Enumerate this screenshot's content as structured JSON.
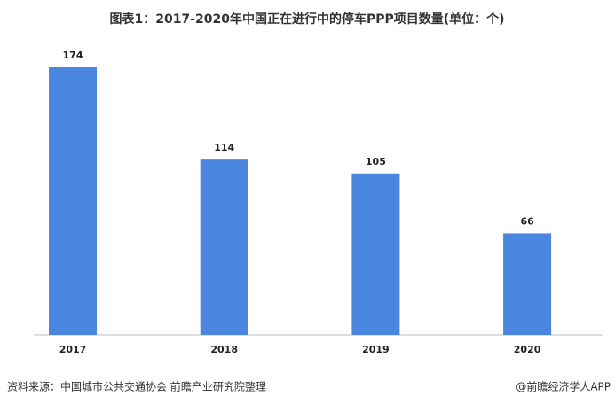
{
  "chart_data": {
    "type": "bar",
    "title": "图表1：2017-2020年中国正在进行中的停车PPP项目数量(单位：个)",
    "categories": [
      "2017",
      "2018",
      "2019",
      "2020"
    ],
    "values": [
      174,
      114,
      105,
      66
    ],
    "color": "#4a86e0",
    "source": "资料来源：中国城市公共交通协会 前瞻产业研究院整理",
    "credit": "@前瞻经济学人APP"
  }
}
